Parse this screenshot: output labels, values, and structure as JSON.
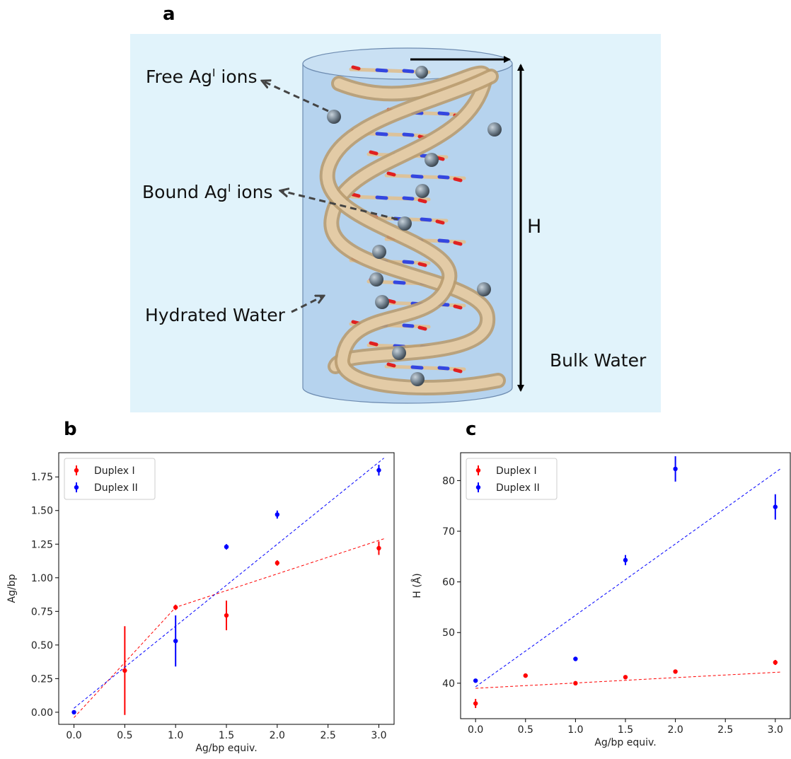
{
  "figure": {
    "panel_a": {
      "letter": "a",
      "labels": {
        "free_ag": "Free Ag",
        "free_sup": "I",
        "free_rest": " ions",
        "bound_ag": "Bound Ag",
        "bound_sup": "I",
        "bound_rest": " ions",
        "hydrated": "Hydrated Water",
        "height": "H",
        "bulk": "Bulk Water"
      },
      "colors": {
        "background": "#e1f3fb",
        "cylinder": "#b6d3ee",
        "ribbon": "#dcc29a",
        "ion": "#7a8996",
        "oxygen": "#e02020",
        "nitrogen": "#3346e0"
      }
    },
    "panel_b": {
      "letter": "b"
    },
    "panel_c": {
      "letter": "c"
    }
  },
  "chart_data": [
    {
      "type": "scatter",
      "xlabel": "Ag/bp equiv.",
      "ylabel": "Ag/bp",
      "xlim": [
        -0.15,
        3.15
      ],
      "ylim": [
        -0.09,
        1.93
      ],
      "xticks": [
        0.0,
        0.5,
        1.0,
        1.5,
        2.0,
        2.5,
        3.0
      ],
      "xtick_labels": [
        "0.0",
        "0.5",
        "1.0",
        "1.5",
        "2.0",
        "2.5",
        "3.0"
      ],
      "yticks": [
        0.0,
        0.25,
        0.5,
        0.75,
        1.0,
        1.25,
        1.5,
        1.75
      ],
      "ytick_labels": [
        "0.00",
        "0.25",
        "0.50",
        "0.75",
        "1.00",
        "1.25",
        "1.50",
        "1.75"
      ],
      "legend_position": "top-left",
      "series": [
        {
          "name": "Duplex I",
          "color": "#ff0000",
          "x": [
            0.5,
            1.0,
            1.5,
            2.0,
            3.0
          ],
          "y": [
            0.31,
            0.78,
            0.72,
            1.11,
            1.22
          ],
          "yerr": [
            0.33,
            0.02,
            0.11,
            0.02,
            0.05
          ],
          "fit": [
            [
              0.0,
              -0.04
            ],
            [
              1.0,
              0.78
            ],
            [
              3.05,
              1.29
            ]
          ]
        },
        {
          "name": "Duplex II",
          "color": "#0000ff",
          "x": [
            0.0,
            1.0,
            1.5,
            2.0,
            3.0
          ],
          "y": [
            0.0,
            0.53,
            1.23,
            1.47,
            1.8
          ],
          "yerr": [
            0.0,
            0.19,
            0.02,
            0.03,
            0.04
          ],
          "fit": [
            [
              0.0,
              0.03
            ],
            [
              3.05,
              1.89
            ]
          ]
        }
      ]
    },
    {
      "type": "scatter",
      "xlabel": "Ag/bp equiv.",
      "ylabel": "H (Å)",
      "xlim": [
        -0.15,
        3.15
      ],
      "ylim": [
        33,
        85.5
      ],
      "xticks": [
        0.0,
        0.5,
        1.0,
        1.5,
        2.0,
        2.5,
        3.0
      ],
      "xtick_labels": [
        "0.0",
        "0.5",
        "1.0",
        "1.5",
        "2.0",
        "2.5",
        "3.0"
      ],
      "yticks": [
        40,
        50,
        60,
        70,
        80
      ],
      "ytick_labels": [
        "40",
        "50",
        "60",
        "70",
        "80"
      ],
      "legend_position": "top-left",
      "series": [
        {
          "name": "Duplex I",
          "color": "#ff0000",
          "x": [
            0.0,
            0.5,
            1.0,
            1.5,
            2.0,
            3.0
          ],
          "y": [
            36.0,
            41.5,
            40.0,
            41.2,
            42.3,
            44.1
          ],
          "yerr": [
            0.9,
            0.4,
            0.4,
            0.3,
            0.3,
            0.5
          ],
          "fit": [
            [
              0.0,
              39.0
            ],
            [
              3.05,
              42.2
            ]
          ]
        },
        {
          "name": "Duplex II",
          "color": "#0000ff",
          "x": [
            0.0,
            1.0,
            1.5,
            2.0,
            3.0
          ],
          "y": [
            40.5,
            44.8,
            64.3,
            82.3,
            74.8
          ],
          "yerr": [
            0.2,
            0.3,
            1.0,
            2.5,
            2.5
          ],
          "fit": [
            [
              0.0,
              39.3
            ],
            [
              3.05,
              82.3
            ]
          ]
        }
      ]
    }
  ]
}
